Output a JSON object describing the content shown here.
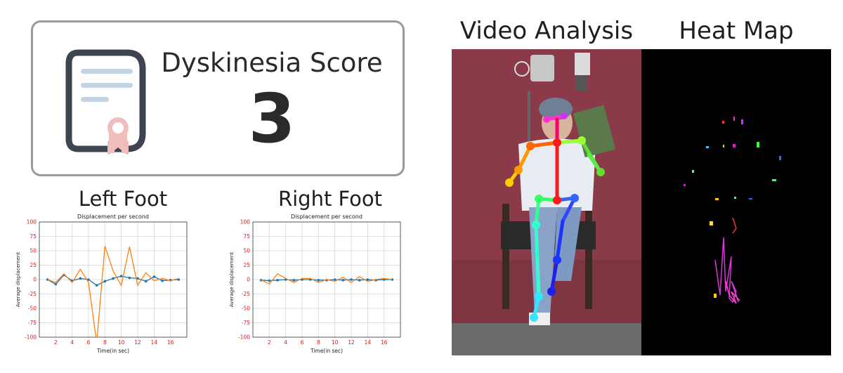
{
  "score": {
    "title": "Dyskinesia Score",
    "value": "3"
  },
  "sections": {
    "video_title": "Video Analysis",
    "heatmap_title": "Heat Map"
  },
  "charts": {
    "left": {
      "heading": "Left Foot",
      "title": "Displacement per second",
      "xlabel": "Time(in sec)",
      "ylabel": "Average displacement"
    },
    "right": {
      "heading": "Right Foot",
      "title": "Displacement per second",
      "xlabel": "Time(in sec)",
      "ylabel": "Average displacement"
    }
  },
  "chart_data": [
    {
      "type": "line",
      "title": "Displacement per second",
      "xlabel": "Time(in sec)",
      "ylabel": "Average displacement",
      "xlim": [
        0,
        18
      ],
      "ylim": [
        -100,
        100
      ],
      "xticks": [
        2,
        4,
        6,
        8,
        10,
        12,
        14,
        16
      ],
      "yticks": [
        -100,
        -75,
        -50,
        -25,
        0,
        25,
        50,
        75,
        100
      ],
      "grid": true,
      "series": [
        {
          "color": "#1f77b4",
          "marker": true,
          "x": [
            1,
            2,
            3,
            4,
            5,
            6,
            7,
            8,
            9,
            10,
            11,
            12,
            13,
            14,
            15,
            16,
            17
          ],
          "y": [
            0,
            -8,
            8,
            -2,
            2,
            0,
            -10,
            -3,
            2,
            6,
            3,
            2,
            -3,
            5,
            -2,
            -1,
            0
          ]
        },
        {
          "color": "#ff7f0e",
          "marker": false,
          "x": [
            1,
            2,
            3,
            4,
            5,
            6,
            7,
            8,
            9,
            10,
            11,
            12,
            13,
            14,
            15,
            16,
            17
          ],
          "y": [
            0,
            -5,
            10,
            -5,
            18,
            -5,
            -110,
            58,
            15,
            -10,
            57,
            -10,
            12,
            -2,
            2,
            -2,
            2
          ]
        }
      ]
    },
    {
      "type": "line",
      "title": "Displacement per second",
      "xlabel": "Time(in sec)",
      "ylabel": "Average displacement",
      "xlim": [
        0,
        18
      ],
      "ylim": [
        -100,
        100
      ],
      "xticks": [
        2,
        4,
        6,
        8,
        10,
        12,
        14,
        16
      ],
      "yticks": [
        -100,
        -75,
        -50,
        -25,
        0,
        25,
        50,
        75,
        100
      ],
      "grid": true,
      "series": [
        {
          "color": "#1f77b4",
          "marker": true,
          "x": [
            1,
            2,
            3,
            4,
            5,
            6,
            7,
            8,
            9,
            10,
            11,
            12,
            13,
            14,
            15,
            16,
            17
          ],
          "y": [
            -1,
            -2,
            -1,
            0,
            -1,
            0,
            0,
            -1,
            -1,
            0,
            -1,
            0,
            -1,
            0,
            -1,
            0,
            0
          ]
        },
        {
          "color": "#ff7f0e",
          "marker": false,
          "x": [
            1,
            2,
            3,
            4,
            5,
            6,
            7,
            8,
            9,
            10,
            11,
            12,
            13,
            14,
            15,
            16,
            17
          ],
          "y": [
            0,
            -8,
            10,
            2,
            -5,
            2,
            2,
            -5,
            0,
            -3,
            4,
            -5,
            5,
            -3,
            0,
            2,
            0
          ]
        }
      ]
    }
  ]
}
